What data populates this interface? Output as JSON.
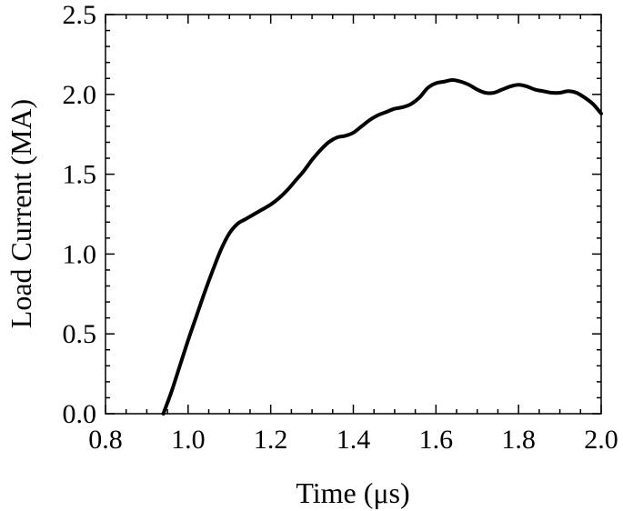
{
  "chart_data": {
    "type": "line",
    "title": "",
    "xlabel": "Time (μs)",
    "ylabel": "Load Current (MA)",
    "xlim": [
      0.8,
      2.0
    ],
    "ylim": [
      0.0,
      2.5
    ],
    "xticks": [
      "0.8",
      "1.0",
      "1.2",
      "1.4",
      "1.6",
      "1.8",
      "2.0"
    ],
    "yticks": [
      "0.0",
      "0.5",
      "1.0",
      "1.5",
      "2.0",
      "2.5"
    ],
    "grid": false,
    "legend": "none",
    "series": [
      {
        "color": "#000000",
        "x": [
          0.94,
          0.96,
          0.98,
          1.0,
          1.02,
          1.04,
          1.06,
          1.08,
          1.1,
          1.12,
          1.14,
          1.16,
          1.18,
          1.2,
          1.22,
          1.24,
          1.26,
          1.28,
          1.3,
          1.32,
          1.34,
          1.36,
          1.38,
          1.4,
          1.42,
          1.44,
          1.46,
          1.48,
          1.5,
          1.52,
          1.54,
          1.56,
          1.58,
          1.6,
          1.62,
          1.64,
          1.66,
          1.68,
          1.7,
          1.72,
          1.74,
          1.76,
          1.78,
          1.8,
          1.82,
          1.84,
          1.86,
          1.88,
          1.9,
          1.92,
          1.94,
          1.96,
          1.98,
          2.0
        ],
        "y": [
          0.0,
          0.14,
          0.3,
          0.46,
          0.61,
          0.76,
          0.9,
          1.03,
          1.13,
          1.19,
          1.22,
          1.25,
          1.28,
          1.31,
          1.35,
          1.4,
          1.46,
          1.52,
          1.59,
          1.65,
          1.7,
          1.73,
          1.74,
          1.76,
          1.8,
          1.84,
          1.87,
          1.89,
          1.91,
          1.92,
          1.94,
          1.98,
          2.04,
          2.07,
          2.08,
          2.09,
          2.08,
          2.06,
          2.03,
          2.01,
          2.01,
          2.03,
          2.05,
          2.06,
          2.05,
          2.03,
          2.02,
          2.01,
          2.01,
          2.02,
          2.01,
          1.98,
          1.94,
          1.88
        ]
      }
    ]
  }
}
